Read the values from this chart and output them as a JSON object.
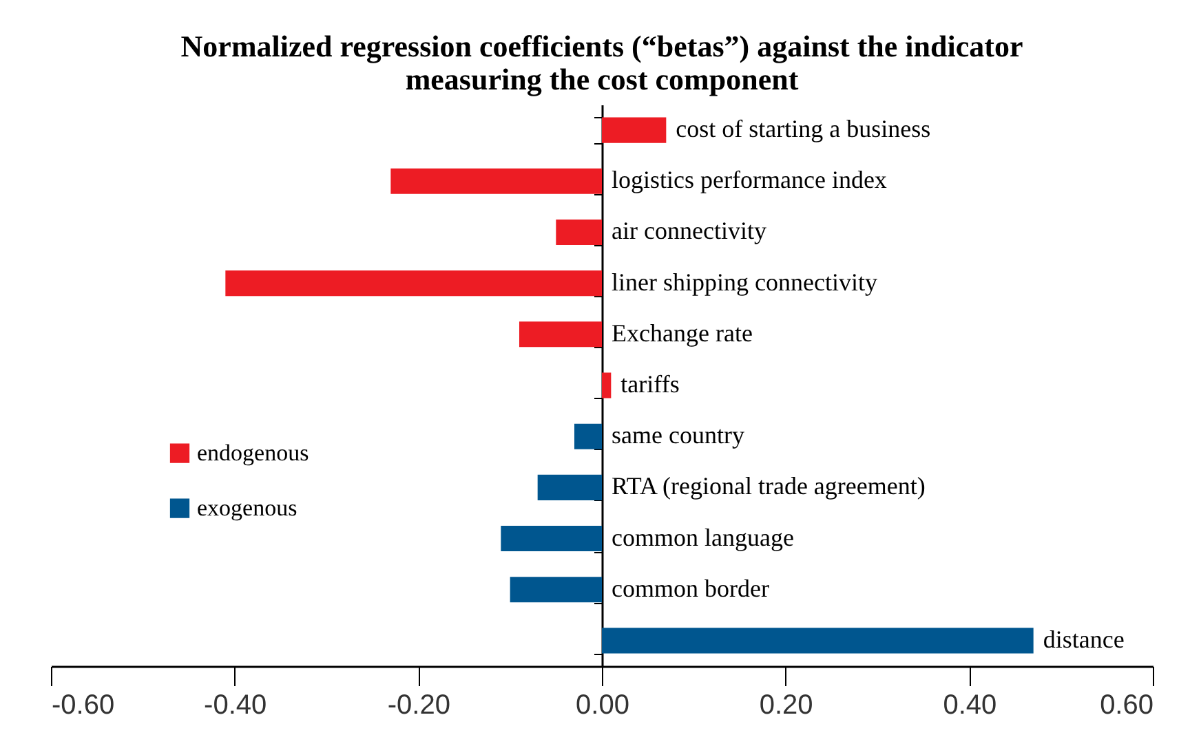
{
  "chart_data": {
    "type": "bar",
    "orientation": "horizontal",
    "title": "Normalized regression coefficients (“betas”) against the indicator\nmeasuring the cost component",
    "categories": [
      "cost of starting a business",
      "logistics performance index",
      "air connectivity",
      "liner shipping connectivity",
      "Exchange rate",
      "tariffs",
      "same country",
      "RTA (regional trade agreement)",
      "common language",
      "common border",
      "distance"
    ],
    "series": [
      {
        "name": "endogenous",
        "color": "#ed1c24",
        "values": [
          0.07,
          -0.23,
          -0.05,
          -0.41,
          -0.09,
          0.01,
          null,
          null,
          null,
          null,
          null
        ]
      },
      {
        "name": "exogenous",
        "color": "#00568f",
        "values": [
          null,
          null,
          null,
          null,
          null,
          null,
          -0.03,
          -0.07,
          -0.11,
          -0.1,
          0.47
        ]
      }
    ],
    "xlim": [
      -0.6,
      0.6
    ],
    "xticks": [
      {
        "value": -0.6,
        "label": "-0.60"
      },
      {
        "value": -0.4,
        "label": "-0.40"
      },
      {
        "value": -0.2,
        "label": "-0.20"
      },
      {
        "value": 0,
        "label": "0.00"
      },
      {
        "value": 0.2,
        "label": "0.20"
      },
      {
        "value": 0.4,
        "label": "0.40"
      },
      {
        "value": 0.6,
        "label": "0.60"
      }
    ],
    "grid": false,
    "legend": "left"
  }
}
